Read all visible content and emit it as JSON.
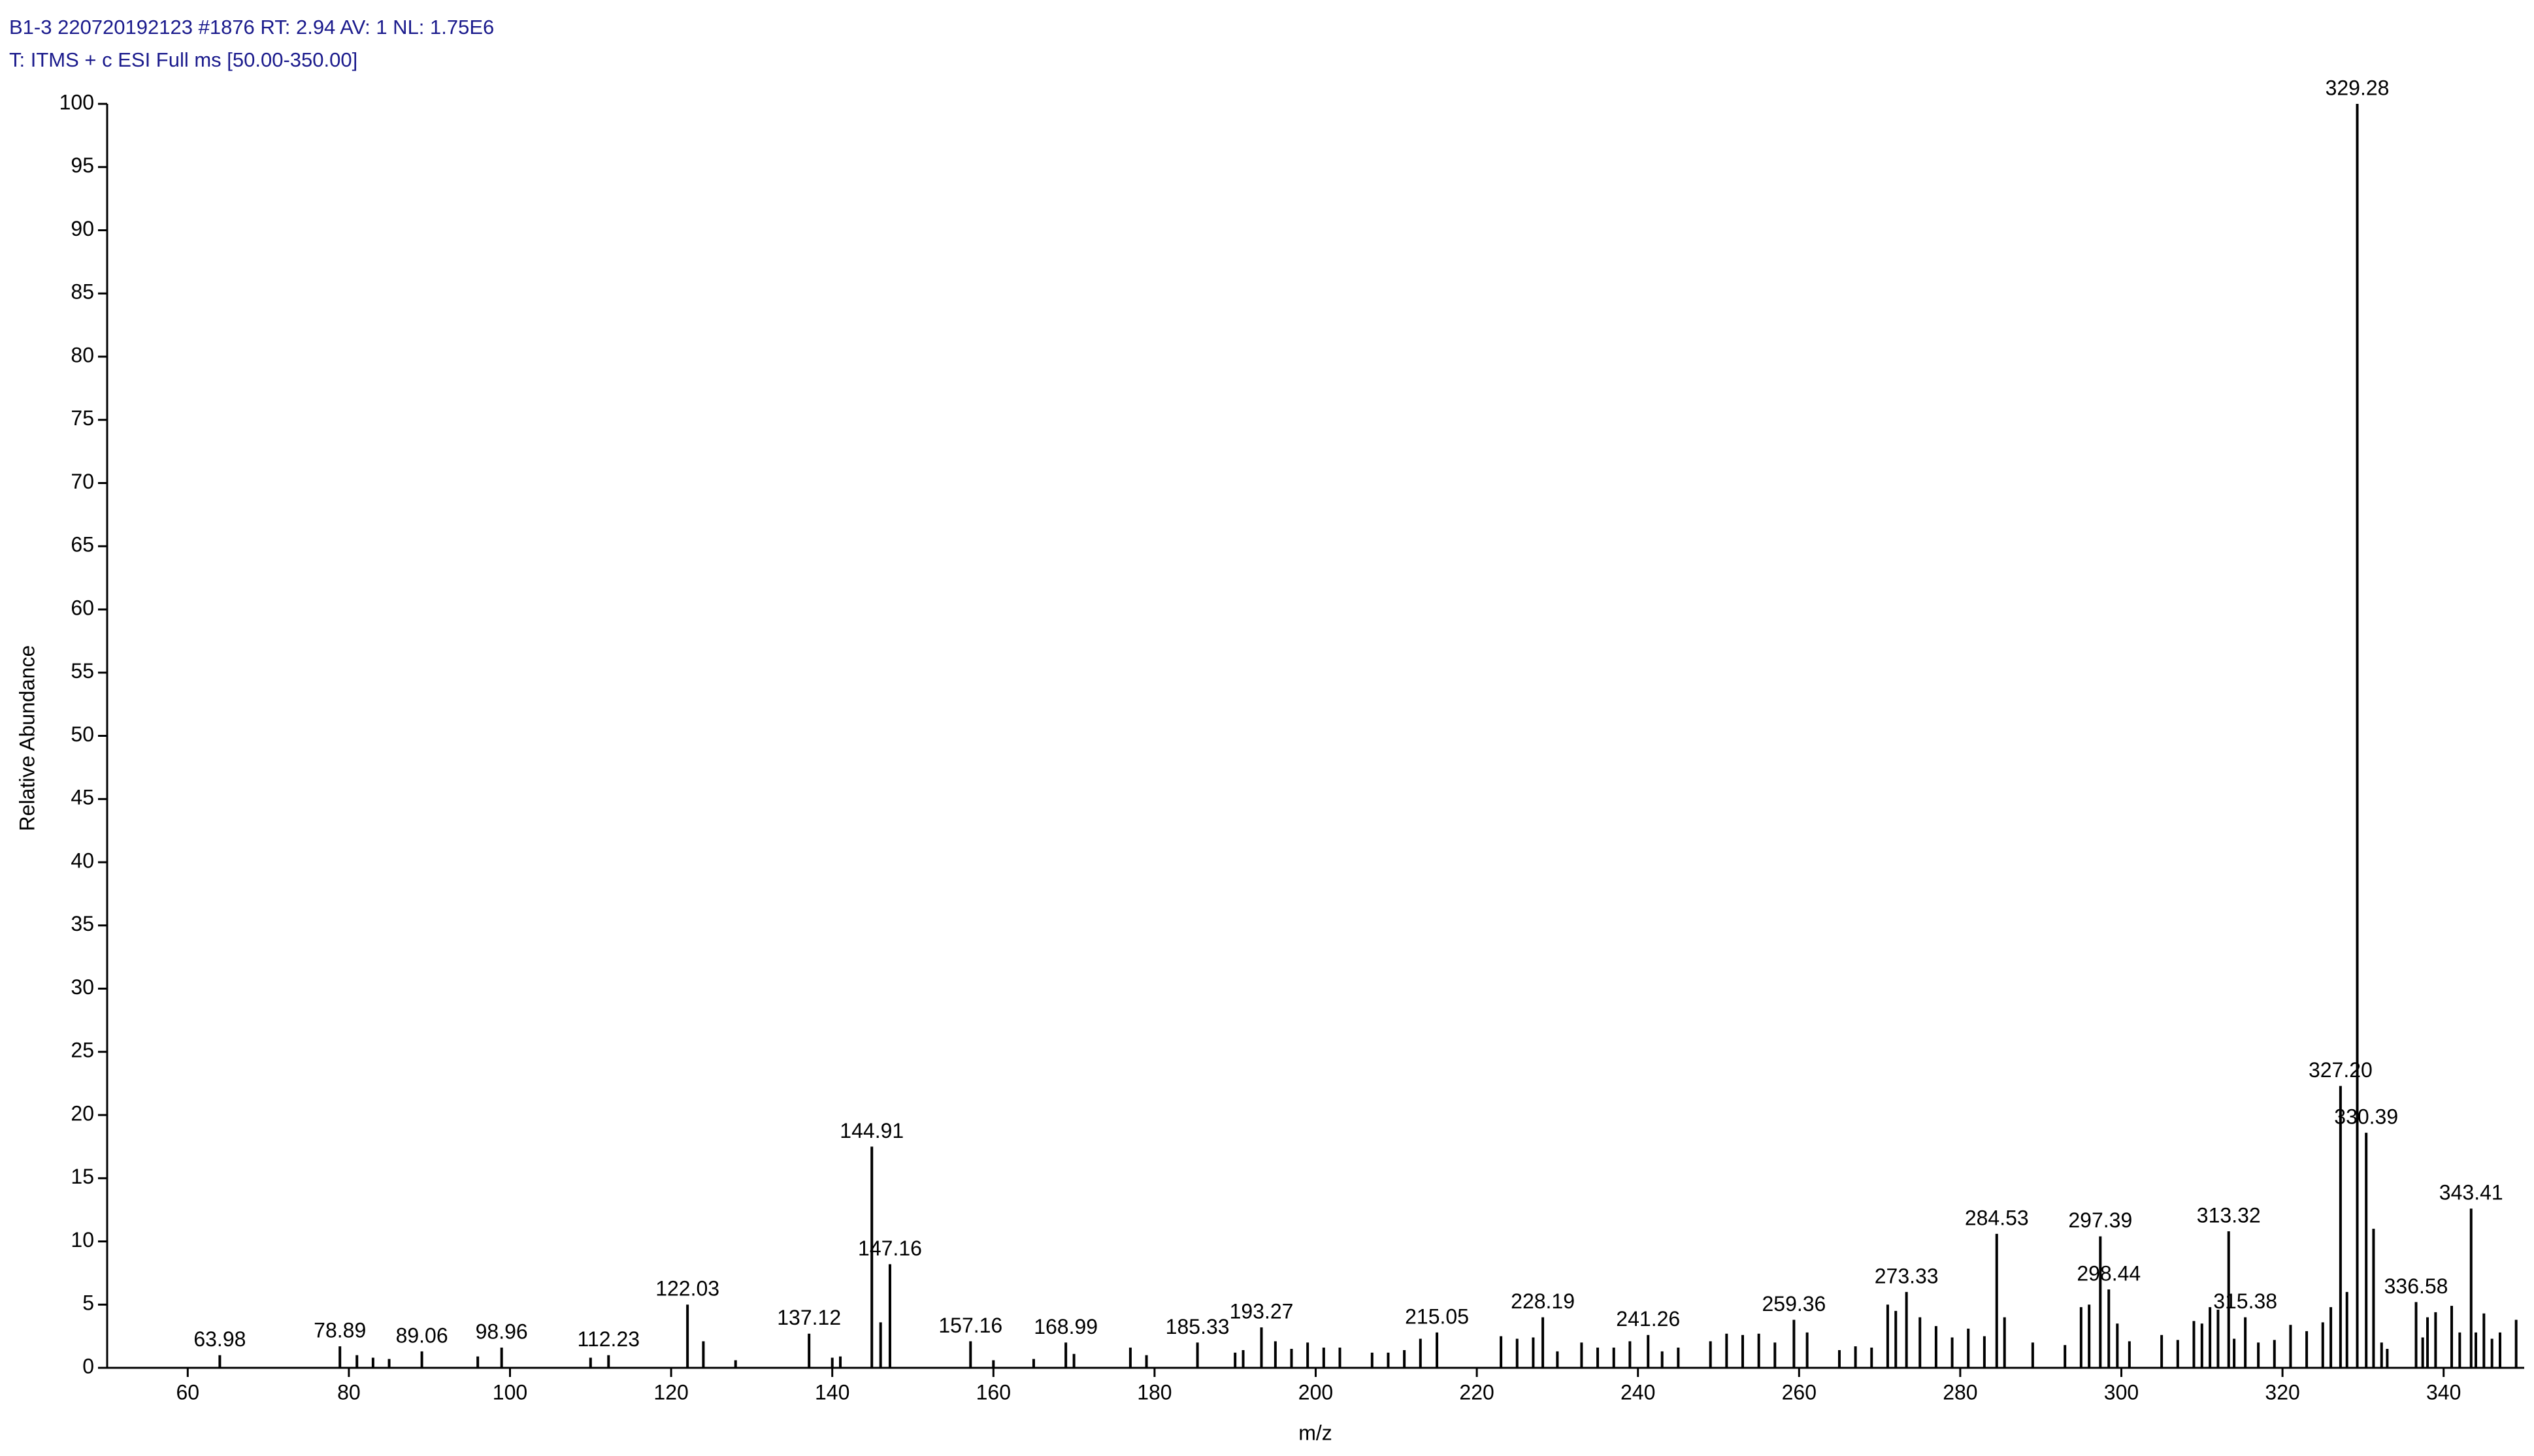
{
  "chart_data": {
    "type": "stick",
    "header": [
      "B1-3  220720192123 #1876  RT: 2.94  AV: 1  NL: 1.75E6",
      "T: ITMS + c ESI Full ms [50.00-350.00]"
    ],
    "xlabel": "m/z",
    "ylabel": "Relative Abundance",
    "xlim": [
      50,
      350
    ],
    "xticks": [
      60,
      80,
      100,
      120,
      140,
      160,
      180,
      200,
      220,
      240,
      260,
      280,
      300,
      320,
      340
    ],
    "ylim": [
      0,
      100
    ],
    "yticks": [
      0,
      5,
      10,
      15,
      20,
      25,
      30,
      35,
      40,
      45,
      50,
      55,
      60,
      65,
      70,
      75,
      80,
      85,
      90,
      95,
      100
    ],
    "color": "#000000",
    "x": [
      63.98,
      78.89,
      81,
      83,
      85,
      89.06,
      96,
      98.96,
      110,
      112.23,
      122.03,
      124,
      128,
      137.12,
      140,
      141,
      144.91,
      146,
      147.16,
      157.16,
      160,
      165,
      168.99,
      170,
      177,
      179,
      185.33,
      190,
      191,
      193.27,
      195,
      197,
      199,
      201,
      203,
      207,
      209,
      211,
      213,
      215.05,
      223,
      225,
      227,
      228.19,
      230,
      233,
      235,
      237,
      239,
      241.26,
      243,
      245,
      249,
      251,
      253,
      255,
      257,
      259.36,
      261,
      265,
      267,
      269,
      271,
      272,
      273.33,
      275,
      277,
      279,
      281,
      283,
      284.53,
      285.5,
      289,
      293,
      295,
      296,
      297.39,
      298.44,
      299.5,
      301,
      305,
      307,
      309,
      310,
      311,
      312,
      313.32,
      314,
      315.38,
      317,
      319,
      321,
      323,
      325,
      326,
      327.2,
      328,
      329.28,
      330.39,
      331.3,
      332.3,
      333,
      336.58,
      337.4,
      338,
      339,
      341,
      342,
      343.41,
      344,
      345,
      346,
      347,
      349
    ],
    "values": [
      1,
      1.7,
      1,
      0.8,
      0.7,
      1.3,
      0.9,
      1.6,
      0.8,
      1,
      5,
      2.1,
      0.6,
      2.7,
      0.8,
      0.9,
      17.5,
      3.6,
      8.2,
      2.1,
      0.6,
      0.7,
      2,
      1.1,
      1.6,
      1,
      2,
      1.2,
      1.4,
      3.2,
      2.1,
      1.5,
      2,
      1.6,
      1.6,
      1.2,
      1.2,
      1.4,
      2.3,
      2.8,
      2.5,
      2.3,
      2.4,
      4,
      1.3,
      2,
      1.6,
      1.6,
      2.1,
      2.6,
      1.3,
      1.6,
      2.1,
      2.7,
      2.6,
      2.7,
      2,
      3.8,
      2.8,
      1.4,
      1.7,
      1.6,
      5,
      4.5,
      6,
      4,
      3.3,
      2.4,
      3.1,
      2.5,
      10.6,
      4,
      2,
      1.8,
      4.8,
      5,
      10.4,
      6.2,
      3.5,
      2.1,
      2.6,
      2.2,
      3.7,
      3.5,
      4.8,
      4.6,
      10.8,
      2.3,
      4,
      2,
      2.2,
      3.4,
      2.9,
      3.6,
      4.8,
      22.3,
      6,
      100,
      18.6,
      11,
      2,
      1.5,
      5.2,
      2.4,
      4,
      4.4,
      4.9,
      2.8,
      12.6,
      2.8,
      4.3,
      2.3,
      2.8,
      3.8
    ],
    "labels": [
      "63.98",
      "78.89",
      null,
      null,
      null,
      "89.06",
      null,
      "98.96",
      null,
      "112.23",
      "122.03",
      null,
      null,
      "137.12",
      null,
      null,
      "144.91",
      null,
      "147.16",
      "157.16",
      null,
      null,
      "168.99",
      null,
      null,
      null,
      "185.33",
      null,
      null,
      "193.27",
      null,
      null,
      null,
      null,
      null,
      null,
      null,
      null,
      null,
      "215.05",
      null,
      null,
      null,
      "228.19",
      null,
      null,
      null,
      null,
      null,
      "241.26",
      null,
      null,
      null,
      null,
      null,
      null,
      null,
      "259.36",
      null,
      null,
      null,
      null,
      null,
      null,
      "273.33",
      null,
      null,
      null,
      null,
      null,
      "284.53",
      null,
      null,
      null,
      null,
      null,
      "297.39",
      "298.44",
      null,
      null,
      null,
      null,
      null,
      null,
      null,
      null,
      "313.32",
      null,
      "315.38",
      null,
      null,
      null,
      null,
      null,
      null,
      "327.20",
      null,
      "329.28",
      "330.39",
      null,
      null,
      null,
      "336.58",
      null,
      null,
      null,
      null,
      null,
      "343.41",
      null,
      null,
      null,
      null,
      null
    ]
  }
}
